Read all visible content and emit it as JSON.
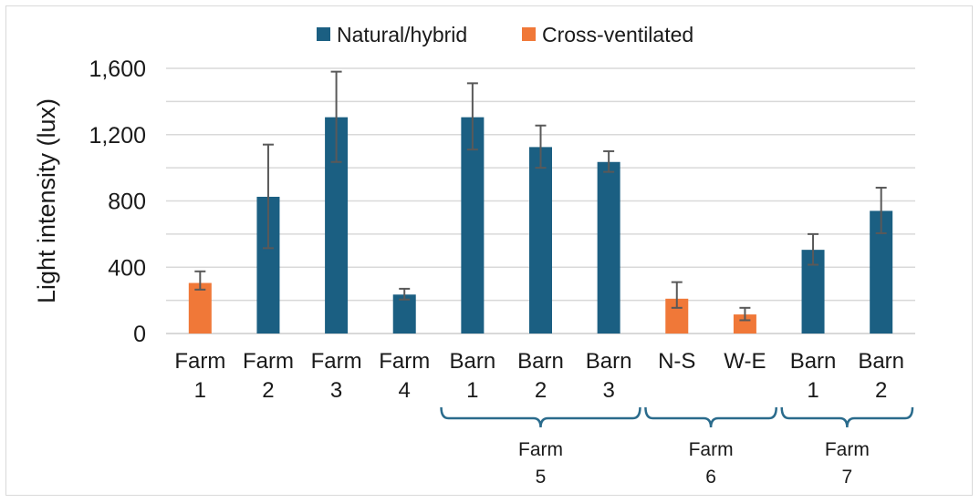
{
  "chart_data": {
    "type": "bar",
    "ylabel": "Light intensity (lux)",
    "ylim": [
      0,
      1600
    ],
    "yticks": [
      0,
      400,
      800,
      1200,
      1600
    ],
    "ytick_labels": [
      "0",
      "400",
      "800",
      "1,200",
      "1,600"
    ],
    "minor_gridlines_every": 200,
    "grid": true,
    "legend_position": "top",
    "legend": [
      {
        "name": "Natural/hybrid",
        "color": "#1b5f82"
      },
      {
        "name": "Cross-ventilated",
        "color": "#f07838"
      }
    ],
    "categories": [
      [
        "Farm",
        "1"
      ],
      [
        "Farm",
        "2"
      ],
      [
        "Farm",
        "3"
      ],
      [
        "Farm",
        "4"
      ],
      [
        "Barn",
        "1"
      ],
      [
        "Barn",
        "2"
      ],
      [
        "Barn",
        "3"
      ],
      [
        "N-S",
        ""
      ],
      [
        "W-E",
        ""
      ],
      [
        "Barn",
        "1"
      ],
      [
        "Barn",
        "2"
      ]
    ],
    "values": [
      305,
      825,
      1305,
      235,
      1305,
      1125,
      1035,
      210,
      115,
      505,
      740
    ],
    "error_low": [
      265,
      515,
      1035,
      205,
      1110,
      1000,
      975,
      155,
      80,
      415,
      605
    ],
    "error_high": [
      375,
      1140,
      1580,
      270,
      1510,
      1255,
      1100,
      310,
      155,
      600,
      880
    ],
    "series_type": [
      "Cross-ventilated",
      "Natural/hybrid",
      "Natural/hybrid",
      "Natural/hybrid",
      "Natural/hybrid",
      "Natural/hybrid",
      "Natural/hybrid",
      "Cross-ventilated",
      "Cross-ventilated",
      "Natural/hybrid",
      "Natural/hybrid"
    ],
    "groups": [
      {
        "label": [
          "Farm",
          "5"
        ],
        "start": 4,
        "end": 6
      },
      {
        "label": [
          "Farm",
          "6"
        ],
        "start": 7,
        "end": 8
      },
      {
        "label": [
          "Farm",
          "7"
        ],
        "start": 9,
        "end": 10
      }
    ],
    "colors": {
      "natural": "#1b5f82",
      "cross": "#f07838",
      "grid": "#d9d9d9",
      "error_bar": "#595959",
      "bracket": "#2a6b8c"
    }
  }
}
